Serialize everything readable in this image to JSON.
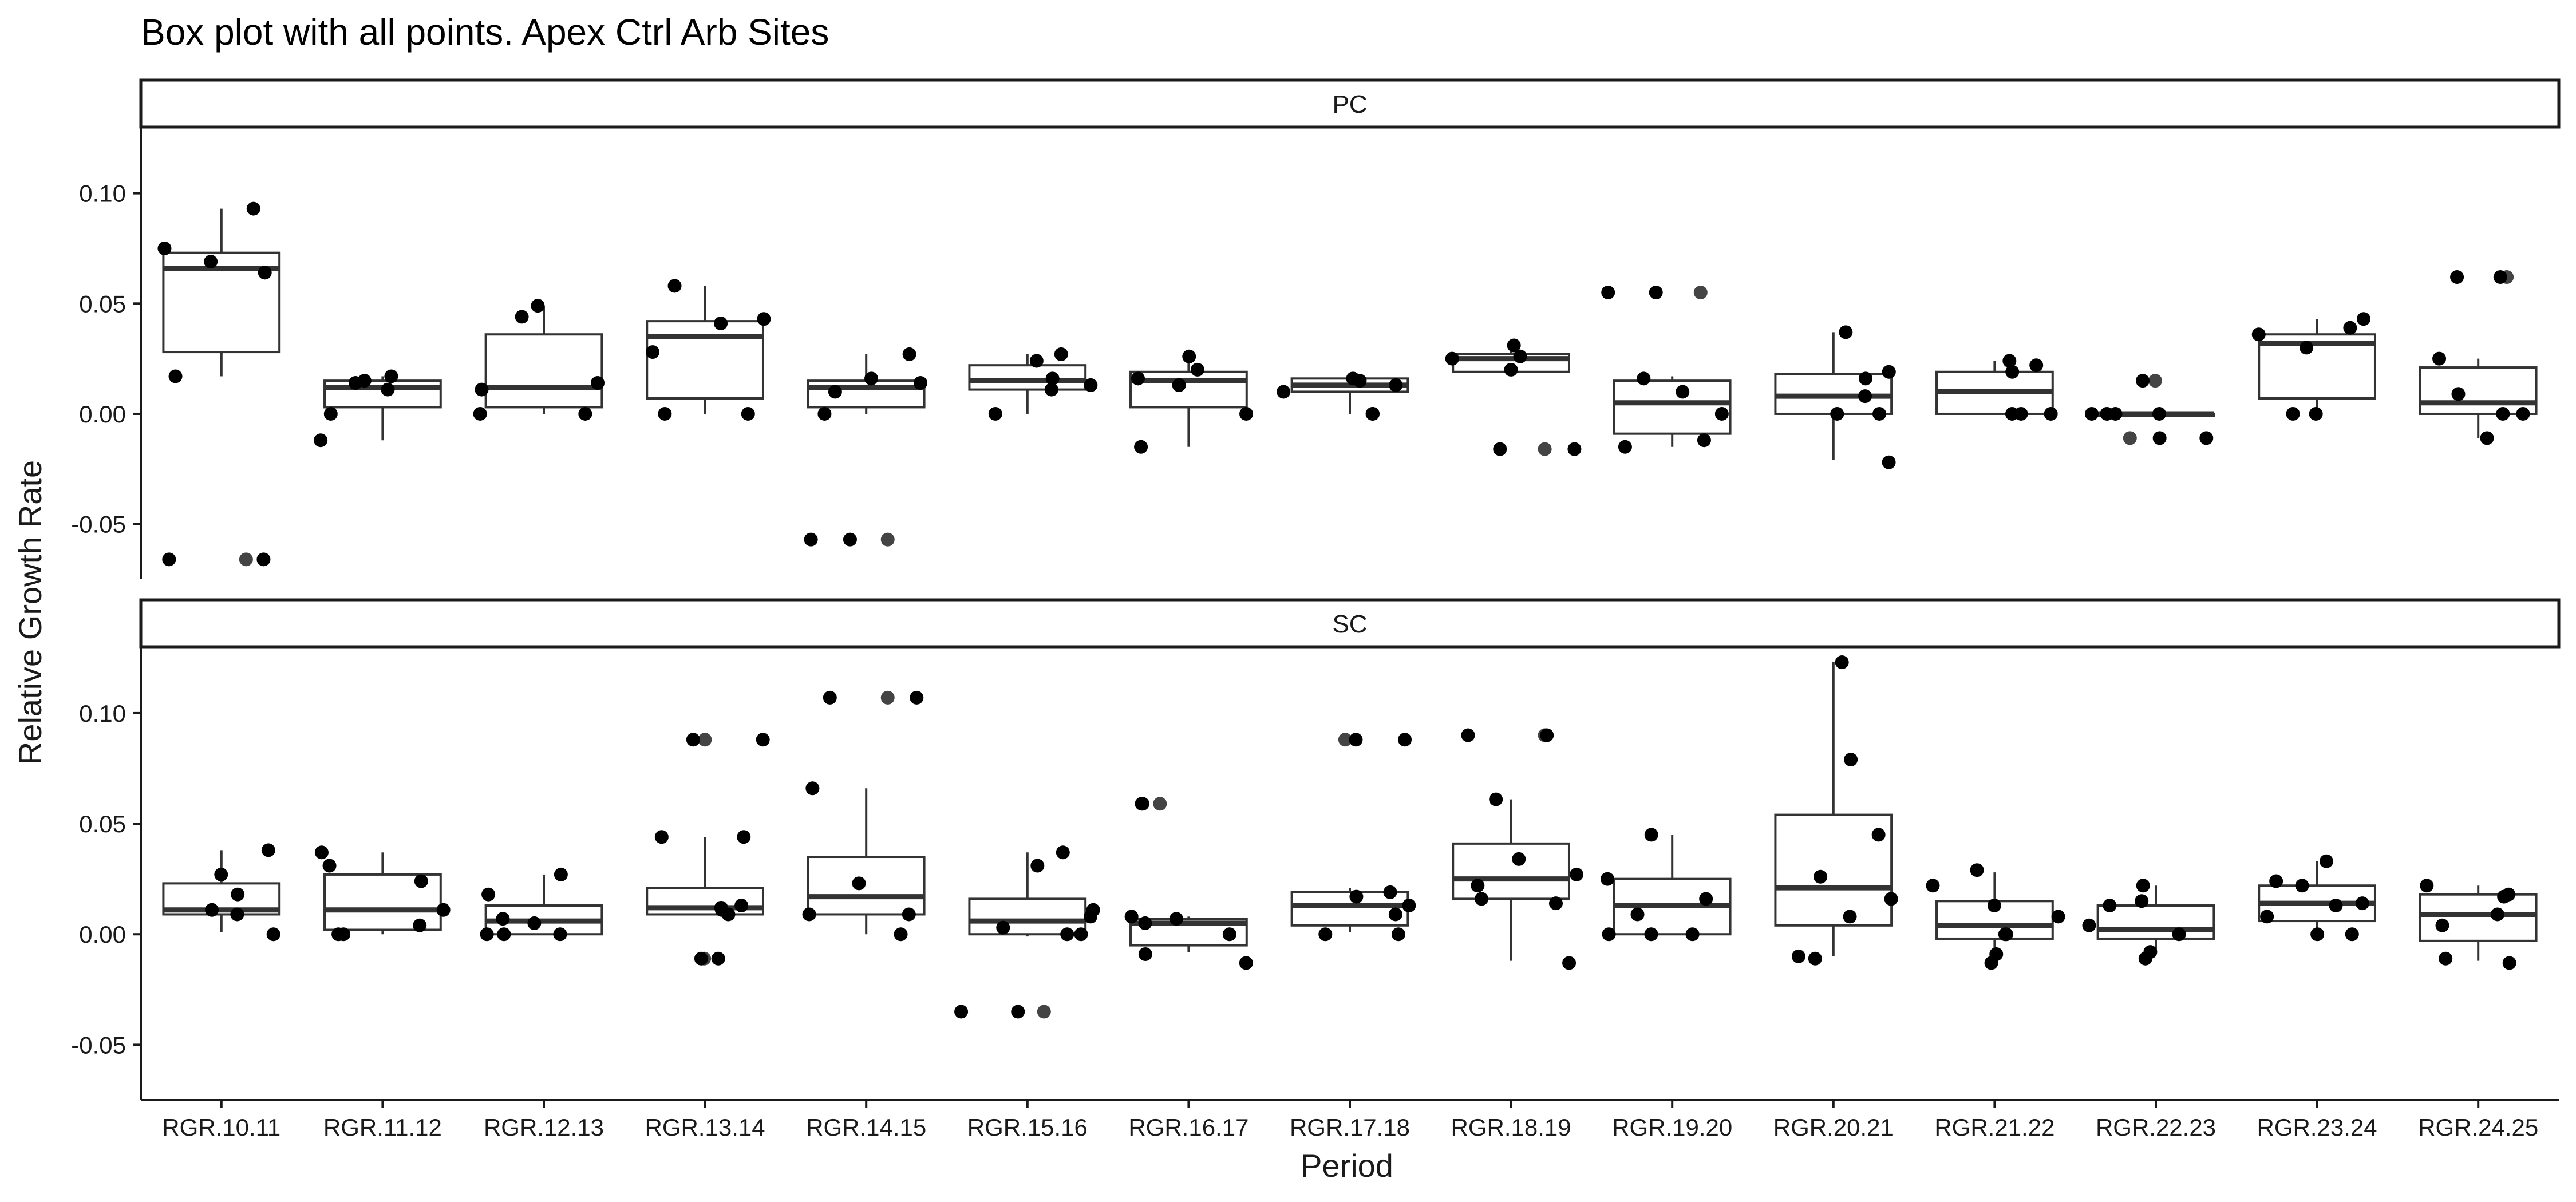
{
  "chart_data": {
    "type": "boxplot",
    "title": "Box plot with all points. Apex Ctrl Arb Sites",
    "xlabel": "Period",
    "ylabel": "Relative Growth Rate",
    "ylim": [
      -0.075,
      0.13
    ],
    "yticks": [
      -0.05,
      0.0,
      0.05,
      0.1
    ],
    "ytick_labels": [
      "-0.05",
      "0.00",
      "0.05",
      "0.10"
    ],
    "grid": false,
    "categories": [
      "RGR.10.11",
      "RGR.11.12",
      "RGR.12.13",
      "RGR.13.14",
      "RGR.14.15",
      "RGR.15.16",
      "RGR.16.17",
      "RGR.17.18",
      "RGR.18.19",
      "RGR.19.20",
      "RGR.20.21",
      "RGR.21.22",
      "RGR.22.23",
      "RGR.23.24",
      "RGR.24.25"
    ],
    "panels": [
      {
        "label": "PC",
        "boxes": [
          {
            "q1": 0.028,
            "median": 0.066,
            "q3": 0.073,
            "whisker_low": 0.017,
            "whisker_high": 0.093,
            "outliers": [
              -0.066
            ]
          },
          {
            "q1": 0.003,
            "median": 0.012,
            "q3": 0.015,
            "whisker_low": -0.012,
            "whisker_high": 0.017,
            "outliers": []
          },
          {
            "q1": 0.003,
            "median": 0.012,
            "q3": 0.036,
            "whisker_low": 0.0,
            "whisker_high": 0.049,
            "outliers": []
          },
          {
            "q1": 0.007,
            "median": 0.035,
            "q3": 0.042,
            "whisker_low": 0.0,
            "whisker_high": 0.058,
            "outliers": []
          },
          {
            "q1": 0.003,
            "median": 0.012,
            "q3": 0.015,
            "whisker_low": 0.0,
            "whisker_high": 0.027,
            "outliers": [
              -0.057
            ]
          },
          {
            "q1": 0.011,
            "median": 0.015,
            "q3": 0.022,
            "whisker_low": 0.0,
            "whisker_high": 0.027,
            "outliers": []
          },
          {
            "q1": 0.003,
            "median": 0.015,
            "q3": 0.019,
            "whisker_low": -0.015,
            "whisker_high": 0.026,
            "outliers": []
          },
          {
            "q1": 0.01,
            "median": 0.013,
            "q3": 0.016,
            "whisker_low": 0.0,
            "whisker_high": 0.017,
            "outliers": []
          },
          {
            "q1": 0.019,
            "median": 0.025,
            "q3": 0.027,
            "whisker_low": 0.019,
            "whisker_high": 0.031,
            "outliers": [
              -0.016
            ]
          },
          {
            "q1": -0.009,
            "median": 0.005,
            "q3": 0.015,
            "whisker_low": -0.015,
            "whisker_high": 0.017,
            "outliers": [
              0.055
            ]
          },
          {
            "q1": 0.0,
            "median": 0.008,
            "q3": 0.018,
            "whisker_low": -0.021,
            "whisker_high": 0.037,
            "outliers": []
          },
          {
            "q1": 0.0,
            "median": 0.01,
            "q3": 0.019,
            "whisker_low": 0.0,
            "whisker_high": 0.024,
            "outliers": []
          },
          {
            "q1": -0.001,
            "median": 0.0,
            "q3": 0.0,
            "whisker_low": -0.001,
            "whisker_high": 0.0,
            "outliers": [
              0.015,
              -0.011
            ]
          },
          {
            "q1": 0.007,
            "median": 0.032,
            "q3": 0.036,
            "whisker_low": 0.0,
            "whisker_high": 0.043,
            "outliers": []
          },
          {
            "q1": 0.0,
            "median": 0.005,
            "q3": 0.021,
            "whisker_low": -0.011,
            "whisker_high": 0.025,
            "outliers": [
              0.062
            ]
          }
        ],
        "points": [
          [
            0.093,
            0.075,
            0.069,
            0.064,
            0.017,
            -0.066,
            -0.066
          ],
          [
            0.017,
            0.015,
            0.014,
            0.011,
            0.0,
            -0.012
          ],
          [
            0.049,
            0.044,
            0.014,
            0.011,
            0.0,
            0.0
          ],
          [
            0.058,
            0.043,
            0.041,
            0.028,
            0.0,
            0.0
          ],
          [
            0.027,
            0.016,
            0.014,
            0.01,
            0.0,
            -0.057,
            -0.057
          ],
          [
            0.027,
            0.024,
            0.016,
            0.013,
            0.011,
            0.0
          ],
          [
            0.026,
            0.02,
            0.016,
            0.013,
            0.0,
            -0.015
          ],
          [
            0.016,
            0.015,
            0.013,
            0.01,
            0.0,
            0.0
          ],
          [
            0.031,
            0.026,
            0.025,
            0.02,
            -0.016,
            -0.016
          ],
          [
            0.055,
            0.055,
            0.016,
            0.01,
            0.0,
            -0.012,
            -0.015
          ],
          [
            0.037,
            0.019,
            0.016,
            0.008,
            0.0,
            0.0,
            -0.022
          ],
          [
            0.024,
            0.022,
            0.019,
            0.0,
            0.0,
            0.0
          ],
          [
            0.015,
            0.0,
            0.0,
            0.0,
            0.0,
            -0.011,
            -0.011
          ],
          [
            0.043,
            0.039,
            0.036,
            0.03,
            0.0,
            0.0
          ],
          [
            0.062,
            0.062,
            0.025,
            0.009,
            0.0,
            0.0,
            -0.011
          ]
        ]
      },
      {
        "label": "SC",
        "boxes": [
          {
            "q1": 0.009,
            "median": 0.011,
            "q3": 0.023,
            "whisker_low": 0.001,
            "whisker_high": 0.038,
            "outliers": []
          },
          {
            "q1": 0.002,
            "median": 0.011,
            "q3": 0.027,
            "whisker_low": 0.0,
            "whisker_high": 0.037,
            "outliers": []
          },
          {
            "q1": 0.0,
            "median": 0.006,
            "q3": 0.013,
            "whisker_low": 0.0,
            "whisker_high": 0.027,
            "outliers": []
          },
          {
            "q1": 0.009,
            "median": 0.012,
            "q3": 0.021,
            "whisker_low": 0.009,
            "whisker_high": 0.044,
            "outliers": [
              0.088,
              -0.011
            ]
          },
          {
            "q1": 0.009,
            "median": 0.017,
            "q3": 0.035,
            "whisker_low": 0.0,
            "whisker_high": 0.066,
            "outliers": [
              0.107
            ]
          },
          {
            "q1": 0.0,
            "median": 0.006,
            "q3": 0.016,
            "whisker_low": -0.001,
            "whisker_high": 0.037,
            "outliers": [
              -0.035
            ]
          },
          {
            "q1": -0.005,
            "median": 0.005,
            "q3": 0.007,
            "whisker_low": -0.008,
            "whisker_high": 0.008,
            "outliers": [
              0.059
            ]
          },
          {
            "q1": 0.004,
            "median": 0.013,
            "q3": 0.019,
            "whisker_low": 0.001,
            "whisker_high": 0.021,
            "outliers": [
              0.088
            ]
          },
          {
            "q1": 0.016,
            "median": 0.025,
            "q3": 0.041,
            "whisker_low": -0.012,
            "whisker_high": 0.061,
            "outliers": [
              0.09
            ]
          },
          {
            "q1": 0.0,
            "median": 0.013,
            "q3": 0.025,
            "whisker_low": 0.0,
            "whisker_high": 0.045,
            "outliers": []
          },
          {
            "q1": 0.004,
            "median": 0.021,
            "q3": 0.054,
            "whisker_low": -0.01,
            "whisker_high": 0.123,
            "outliers": []
          },
          {
            "q1": -0.002,
            "median": 0.004,
            "q3": 0.015,
            "whisker_low": -0.012,
            "whisker_high": 0.028,
            "outliers": []
          },
          {
            "q1": -0.002,
            "median": 0.002,
            "q3": 0.013,
            "whisker_low": -0.008,
            "whisker_high": 0.022,
            "outliers": []
          },
          {
            "q1": 0.006,
            "median": 0.014,
            "q3": 0.022,
            "whisker_low": 0.0,
            "whisker_high": 0.033,
            "outliers": []
          },
          {
            "q1": -0.003,
            "median": 0.009,
            "q3": 0.018,
            "whisker_low": -0.012,
            "whisker_high": 0.022,
            "outliers": []
          }
        ],
        "points": [
          [
            0.038,
            0.027,
            0.018,
            0.011,
            0.009,
            0.0
          ],
          [
            0.037,
            0.031,
            0.024,
            0.011,
            0.004,
            0.0,
            0.0
          ],
          [
            0.027,
            0.018,
            0.007,
            0.005,
            0.0,
            0.0,
            0.0
          ],
          [
            0.088,
            0.088,
            0.044,
            0.044,
            0.013,
            0.012,
            0.011,
            0.009,
            -0.011,
            -0.011
          ],
          [
            0.107,
            0.107,
            0.066,
            0.023,
            0.009,
            0.009,
            0.0
          ],
          [
            0.037,
            0.031,
            0.011,
            0.008,
            0.003,
            0.0,
            0.0,
            -0.035,
            -0.035
          ],
          [
            0.059,
            0.059,
            0.008,
            0.007,
            0.005,
            0.0,
            -0.009,
            -0.013
          ],
          [
            0.088,
            0.088,
            0.019,
            0.017,
            0.013,
            0.009,
            0.0,
            0.0
          ],
          [
            0.09,
            0.09,
            0.061,
            0.034,
            0.027,
            0.022,
            0.016,
            0.014,
            -0.013
          ],
          [
            0.045,
            0.025,
            0.016,
            0.009,
            0.0,
            0.0,
            0.0
          ],
          [
            0.123,
            0.079,
            0.045,
            0.026,
            0.016,
            0.008,
            -0.01,
            -0.011
          ],
          [
            0.029,
            0.022,
            0.013,
            0.008,
            0.0,
            0.0,
            -0.009,
            -0.013
          ],
          [
            0.022,
            0.015,
            0.013,
            0.004,
            0.0,
            -0.008,
            -0.011
          ],
          [
            0.033,
            0.024,
            0.022,
            0.014,
            0.013,
            0.008,
            0.0,
            0.0
          ],
          [
            0.022,
            0.018,
            0.017,
            0.009,
            0.004,
            -0.011,
            -0.013
          ]
        ]
      }
    ]
  }
}
